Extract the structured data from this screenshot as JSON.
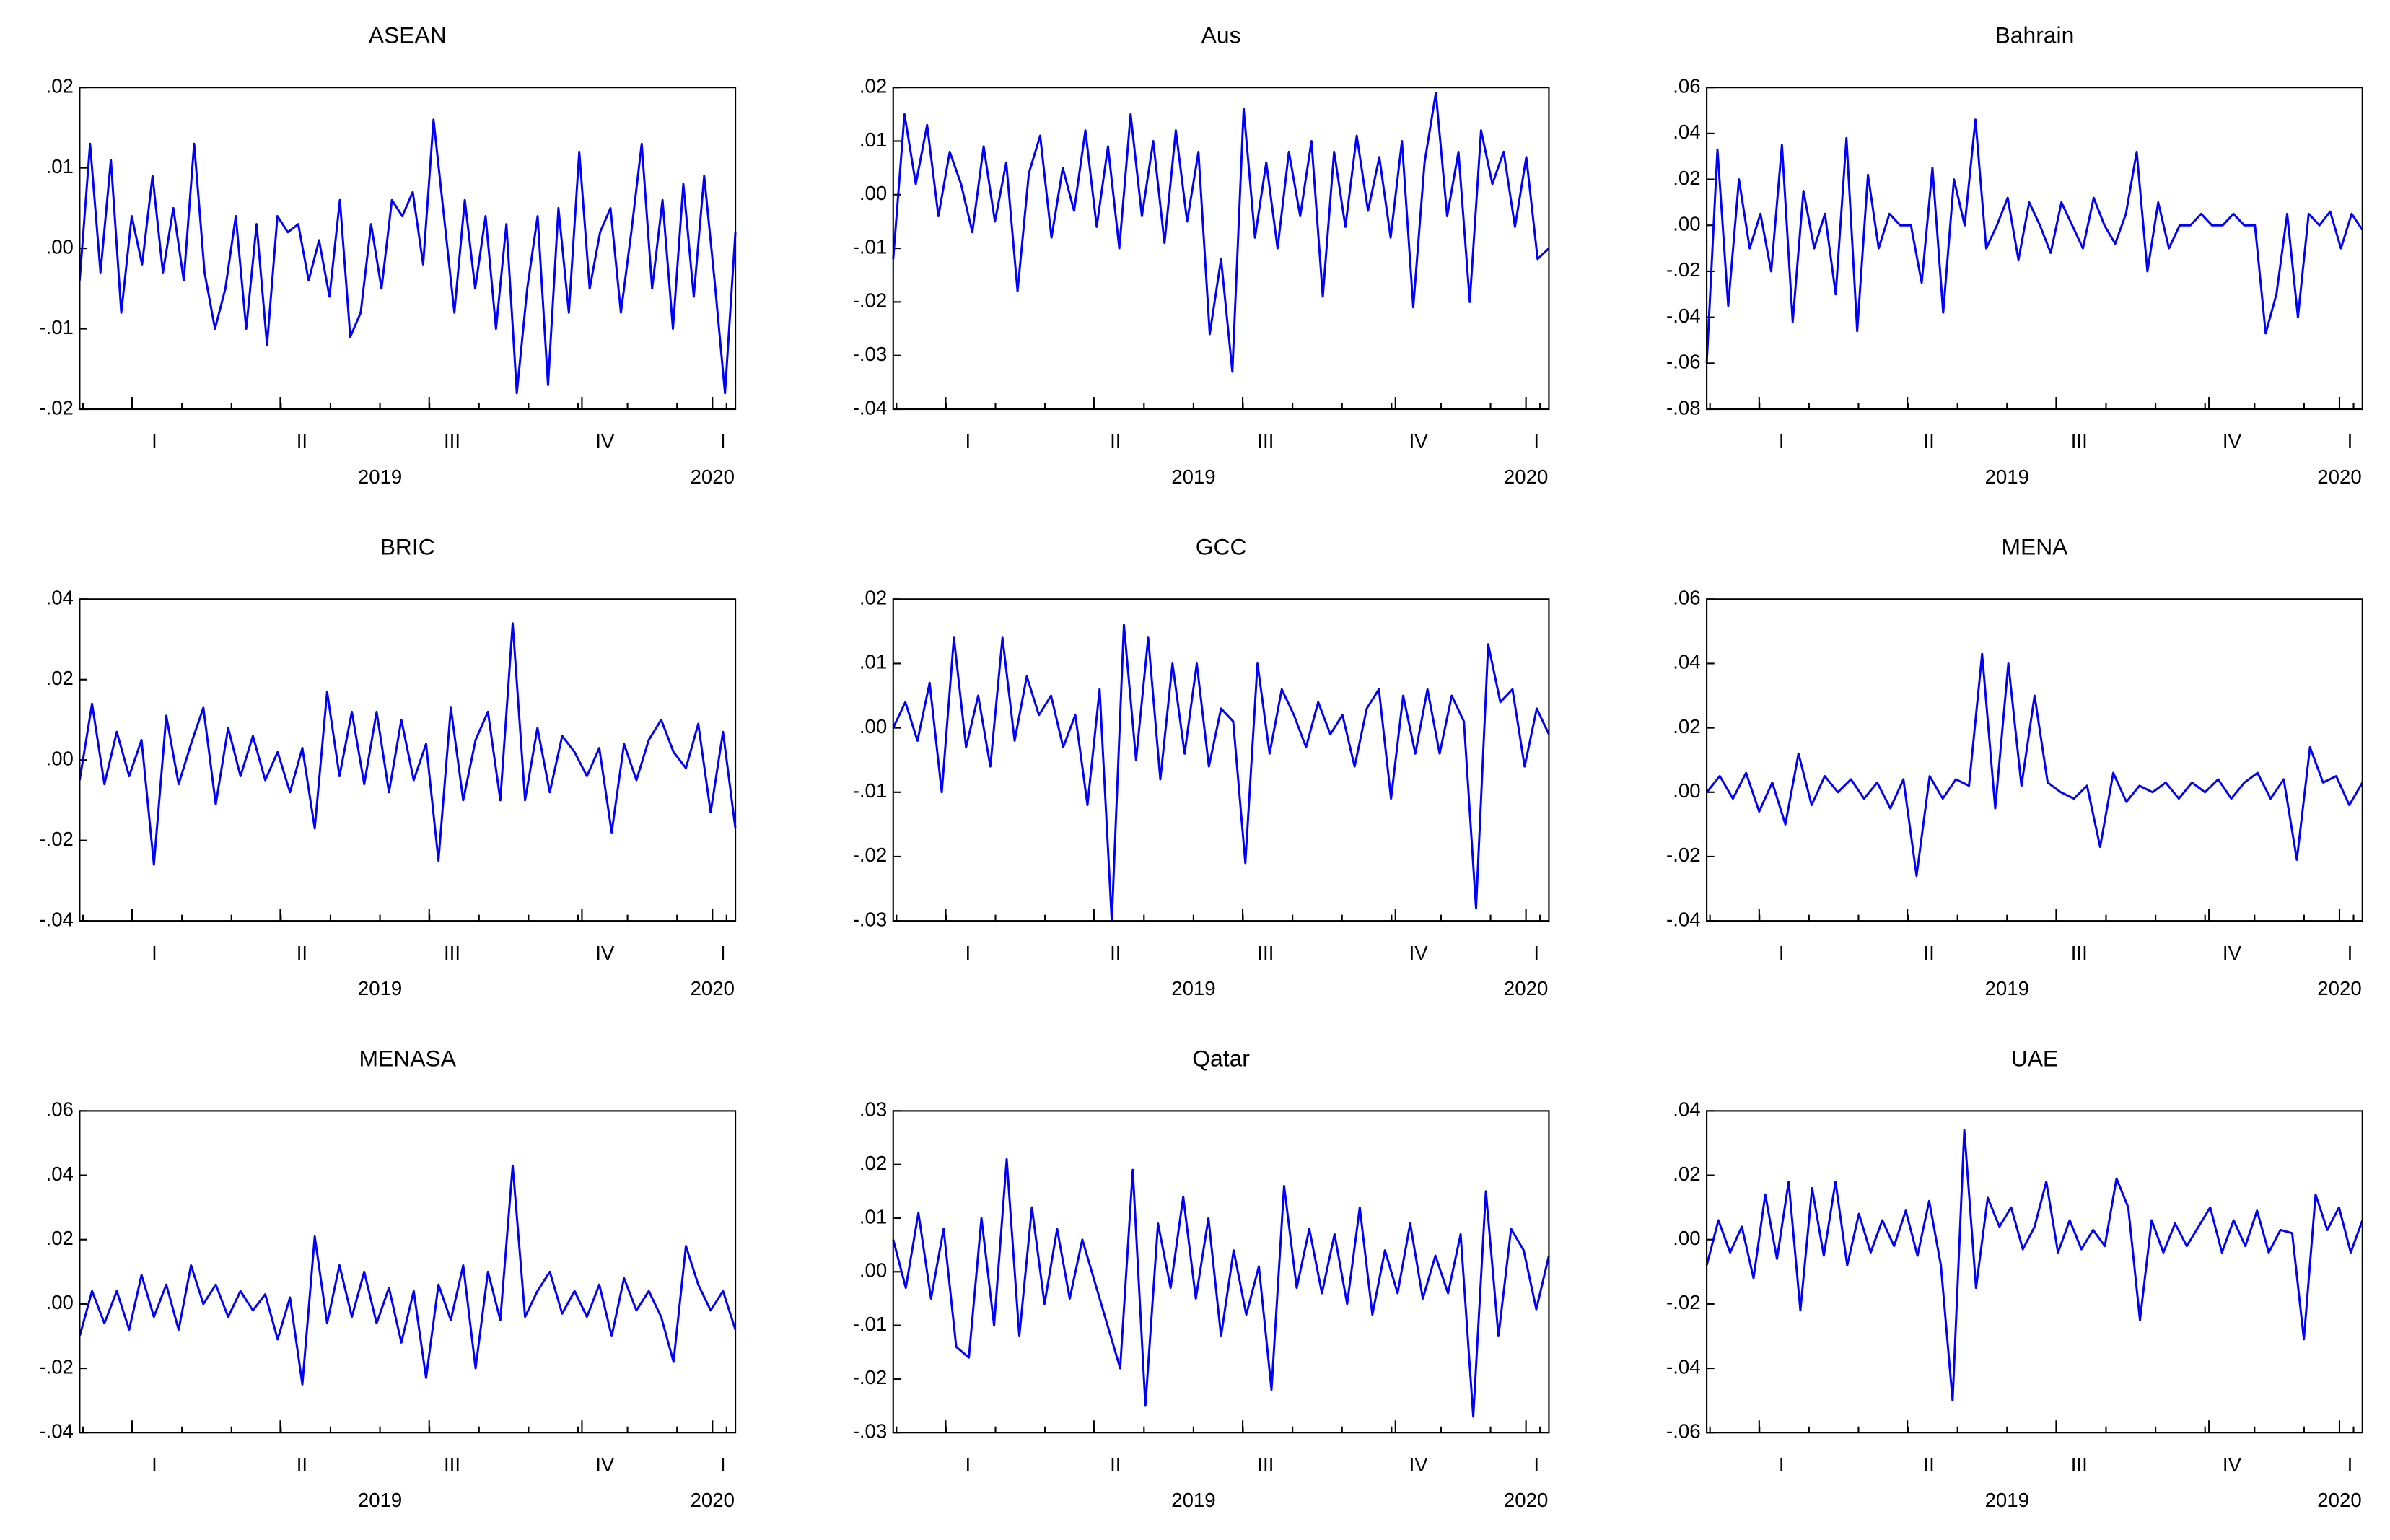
{
  "chart_data": [
    {
      "type": "line",
      "title": "ASEAN",
      "color": "#0000ff",
      "ylim": [
        -0.02,
        0.02
      ],
      "yticks": [
        {
          "value": -0.02,
          "label": "-.02"
        },
        {
          "value": -0.01,
          "label": "-.01"
        },
        {
          "value": 0,
          "label": ".00"
        },
        {
          "value": 0.01,
          "label": ".01"
        },
        {
          "value": 0.02,
          "label": ".02"
        }
      ],
      "x_labels": [
        "I",
        "II",
        "III",
        "IV",
        "I"
      ],
      "years": [
        "2019",
        "2020"
      ],
      "values": [
        -0.004,
        0.013,
        -0.003,
        0.011,
        -0.008,
        0.004,
        -0.002,
        0.009,
        -0.003,
        0.005,
        -0.004,
        0.013,
        -0.003,
        -0.01,
        -0.005,
        0.004,
        -0.01,
        0.003,
        -0.012,
        0.004,
        0.002,
        0.003,
        -0.004,
        0.001,
        -0.006,
        0.006,
        -0.011,
        -0.008,
        0.003,
        -0.005,
        0.006,
        0.004,
        0.007,
        -0.002,
        0.016,
        0.004,
        -0.008,
        0.006,
        -0.005,
        0.004,
        -0.01,
        0.003,
        -0.018,
        -0.005,
        0.004,
        -0.017,
        0.005,
        -0.008,
        0.012,
        -0.005,
        0.002,
        0.005,
        -0.008,
        0.002,
        0.013,
        -0.005,
        0.006,
        -0.01,
        0.008,
        -0.006,
        0.009,
        -0.004,
        -0.018,
        0.002
      ]
    },
    {
      "type": "line",
      "title": "Aus",
      "color": "#0000ff",
      "ylim": [
        -0.04,
        0.02
      ],
      "yticks": [
        {
          "value": -0.04,
          "label": "-.04"
        },
        {
          "value": -0.03,
          "label": "-.03"
        },
        {
          "value": -0.02,
          "label": "-.02"
        },
        {
          "value": -0.01,
          "label": "-.01"
        },
        {
          "value": 0,
          "label": ".00"
        },
        {
          "value": 0.01,
          "label": ".01"
        },
        {
          "value": 0.02,
          "label": ".02"
        }
      ],
      "x_labels": [
        "I",
        "II",
        "III",
        "IV",
        "I"
      ],
      "years": [
        "2019",
        "2020"
      ],
      "values": [
        -0.012,
        0.015,
        0.002,
        0.013,
        -0.004,
        0.008,
        0.002,
        -0.007,
        0.009,
        -0.005,
        0.006,
        -0.018,
        0.004,
        0.011,
        -0.008,
        0.005,
        -0.003,
        0.012,
        -0.006,
        0.009,
        -0.01,
        0.015,
        -0.004,
        0.01,
        -0.009,
        0.012,
        -0.005,
        0.008,
        -0.026,
        -0.012,
        -0.033,
        0.016,
        -0.008,
        0.006,
        -0.01,
        0.008,
        -0.004,
        0.01,
        -0.019,
        0.008,
        -0.006,
        0.011,
        -0.003,
        0.007,
        -0.008,
        0.01,
        -0.021,
        0.006,
        0.019,
        -0.004,
        0.008,
        -0.02,
        0.012,
        0.002,
        0.008,
        -0.006,
        0.007,
        -0.012,
        -0.01
      ]
    },
    {
      "type": "line",
      "title": "Bahrain",
      "color": "#0000ff",
      "ylim": [
        -0.08,
        0.06
      ],
      "yticks": [
        {
          "value": -0.08,
          "label": "-.08"
        },
        {
          "value": -0.06,
          "label": "-.06"
        },
        {
          "value": -0.04,
          "label": "-.04"
        },
        {
          "value": -0.02,
          "label": "-.02"
        },
        {
          "value": 0,
          "label": ".00"
        },
        {
          "value": 0.02,
          "label": ".02"
        },
        {
          "value": 0.04,
          "label": ".04"
        },
        {
          "value": 0.06,
          "label": ".06"
        }
      ],
      "x_labels": [
        "I",
        "II",
        "III",
        "IV",
        "I"
      ],
      "years": [
        "2019",
        "2020"
      ],
      "values": [
        -0.06,
        0.033,
        -0.035,
        0.02,
        -0.01,
        0.005,
        -0.02,
        0.035,
        -0.042,
        0.015,
        -0.01,
        0.005,
        -0.03,
        0.038,
        -0.046,
        0.022,
        -0.01,
        0.005,
        0,
        0,
        -0.025,
        0.025,
        -0.038,
        0.02,
        0,
        0.046,
        -0.01,
        0,
        0.012,
        -0.015,
        0.01,
        0,
        -0.012,
        0.01,
        0,
        -0.01,
        0.012,
        0,
        -0.008,
        0.005,
        0.032,
        -0.02,
        0.01,
        -0.01,
        0,
        0,
        0.005,
        0,
        0,
        0.005,
        0,
        0,
        -0.047,
        -0.03,
        0.005,
        -0.04,
        0.005,
        0,
        0.006,
        -0.01,
        0.005,
        -0.002
      ]
    },
    {
      "type": "line",
      "title": "BRIC",
      "color": "#0000ff",
      "ylim": [
        -0.04,
        0.04
      ],
      "yticks": [
        {
          "value": -0.04,
          "label": "-.04"
        },
        {
          "value": -0.02,
          "label": "-.02"
        },
        {
          "value": 0,
          "label": ".00"
        },
        {
          "value": 0.02,
          "label": ".02"
        },
        {
          "value": 0.04,
          "label": ".04"
        }
      ],
      "x_labels": [
        "I",
        "II",
        "III",
        "IV",
        "I"
      ],
      "years": [
        "2019",
        "2020"
      ],
      "values": [
        -0.005,
        0.014,
        -0.006,
        0.007,
        -0.004,
        0.005,
        -0.026,
        0.011,
        -0.006,
        0.004,
        0.013,
        -0.011,
        0.008,
        -0.004,
        0.006,
        -0.005,
        0.002,
        -0.008,
        0.003,
        -0.017,
        0.017,
        -0.004,
        0.012,
        -0.006,
        0.012,
        -0.008,
        0.01,
        -0.005,
        0.004,
        -0.025,
        0.013,
        -0.01,
        0.005,
        0.012,
        -0.01,
        0.034,
        -0.01,
        0.008,
        -0.008,
        0.006,
        0.002,
        -0.004,
        0.003,
        -0.018,
        0.004,
        -0.005,
        0.005,
        0.01,
        0.002,
        -0.002,
        0.009,
        -0.013,
        0.007,
        -0.017
      ]
    },
    {
      "type": "line",
      "title": "GCC",
      "color": "#0000ff",
      "ylim": [
        -0.03,
        0.02
      ],
      "yticks": [
        {
          "value": -0.03,
          "label": "-.03"
        },
        {
          "value": -0.02,
          "label": "-.02"
        },
        {
          "value": -0.01,
          "label": "-.01"
        },
        {
          "value": 0,
          "label": ".00"
        },
        {
          "value": 0.01,
          "label": ".01"
        },
        {
          "value": 0.02,
          "label": ".02"
        }
      ],
      "x_labels": [
        "I",
        "II",
        "III",
        "IV",
        "I"
      ],
      "years": [
        "2019",
        "2020"
      ],
      "values": [
        0,
        0.004,
        -0.002,
        0.007,
        -0.01,
        0.014,
        -0.003,
        0.005,
        -0.006,
        0.014,
        -0.002,
        0.008,
        0.002,
        0.005,
        -0.003,
        0.002,
        -0.012,
        0.006,
        -0.03,
        0.016,
        -0.005,
        0.014,
        -0.008,
        0.01,
        -0.004,
        0.01,
        -0.006,
        0.003,
        0.001,
        -0.021,
        0.01,
        -0.004,
        0.006,
        0.002,
        -0.003,
        0.004,
        -0.001,
        0.002,
        -0.006,
        0.003,
        0.006,
        -0.011,
        0.005,
        -0.004,
        0.006,
        -0.004,
        0.005,
        0.001,
        -0.028,
        0.013,
        0.004,
        0.006,
        -0.006,
        0.003,
        -0.001
      ]
    },
    {
      "type": "line",
      "title": "MENA",
      "color": "#0000ff",
      "ylim": [
        -0.04,
        0.06
      ],
      "yticks": [
        {
          "value": -0.04,
          "label": "-.04"
        },
        {
          "value": -0.02,
          "label": "-.02"
        },
        {
          "value": 0,
          "label": ".00"
        },
        {
          "value": 0.02,
          "label": ".02"
        },
        {
          "value": 0.04,
          "label": ".04"
        },
        {
          "value": 0.06,
          "label": ".06"
        }
      ],
      "x_labels": [
        "I",
        "II",
        "III",
        "IV",
        "I"
      ],
      "years": [
        "2019",
        "2020"
      ],
      "values": [
        0,
        0.005,
        -0.002,
        0.006,
        -0.006,
        0.003,
        -0.01,
        0.012,
        -0.004,
        0.005,
        0,
        0.004,
        -0.002,
        0.003,
        -0.005,
        0.004,
        -0.026,
        0.005,
        -0.002,
        0.004,
        0.002,
        0.043,
        -0.005,
        0.04,
        0.002,
        0.03,
        0.003,
        0,
        -0.002,
        0.002,
        -0.017,
        0.006,
        -0.003,
        0.002,
        0,
        0.003,
        -0.002,
        0.003,
        0,
        0.004,
        -0.002,
        0.003,
        0.006,
        -0.002,
        0.004,
        -0.021,
        0.014,
        0.003,
        0.005,
        -0.004,
        0.003
      ]
    },
    {
      "type": "line",
      "title": "MENASA",
      "color": "#0000ff",
      "ylim": [
        -0.04,
        0.06
      ],
      "yticks": [
        {
          "value": -0.04,
          "label": "-.04"
        },
        {
          "value": -0.02,
          "label": "-.02"
        },
        {
          "value": 0,
          "label": ".00"
        },
        {
          "value": 0.02,
          "label": ".02"
        },
        {
          "value": 0.04,
          "label": ".04"
        },
        {
          "value": 0.06,
          "label": ".06"
        }
      ],
      "x_labels": [
        "I",
        "II",
        "III",
        "IV",
        "I"
      ],
      "years": [
        "2019",
        "2020"
      ],
      "values": [
        -0.01,
        0.004,
        -0.006,
        0.004,
        -0.008,
        0.009,
        -0.004,
        0.006,
        -0.008,
        0.012,
        0,
        0.006,
        -0.004,
        0.004,
        -0.002,
        0.003,
        -0.011,
        0.002,
        -0.025,
        0.021,
        -0.006,
        0.012,
        -0.004,
        0.01,
        -0.006,
        0.005,
        -0.012,
        0.004,
        -0.023,
        0.006,
        -0.005,
        0.012,
        -0.02,
        0.01,
        -0.005,
        0.043,
        -0.004,
        0.004,
        0.01,
        -0.003,
        0.004,
        -0.004,
        0.006,
        -0.01,
        0.008,
        -0.002,
        0.004,
        -0.004,
        -0.018,
        0.018,
        0.006,
        -0.002,
        0.004,
        -0.008
      ]
    },
    {
      "type": "line",
      "title": "Qatar",
      "color": "#0000ff",
      "ylim": [
        -0.03,
        0.03
      ],
      "yticks": [
        {
          "value": -0.03,
          "label": "-.03"
        },
        {
          "value": -0.02,
          "label": "-.02"
        },
        {
          "value": -0.01,
          "label": "-.01"
        },
        {
          "value": 0,
          "label": ".00"
        },
        {
          "value": 0.01,
          "label": ".01"
        },
        {
          "value": 0.02,
          "label": ".02"
        },
        {
          "value": 0.03,
          "label": ".03"
        }
      ],
      "x_labels": [
        "I",
        "II",
        "III",
        "IV",
        "I"
      ],
      "years": [
        "2019",
        "2020"
      ],
      "values": [
        0.006,
        -0.003,
        0.011,
        -0.005,
        0.008,
        -0.014,
        -0.016,
        0.01,
        -0.01,
        0.021,
        -0.012,
        0.012,
        -0.006,
        0.008,
        -0.005,
        0.006,
        -0.002,
        -0.01,
        -0.018,
        0.019,
        -0.025,
        0.009,
        -0.003,
        0.014,
        -0.005,
        0.01,
        -0.012,
        0.004,
        -0.008,
        0.001,
        -0.022,
        0.016,
        -0.003,
        0.008,
        -0.004,
        0.007,
        -0.006,
        0.012,
        -0.008,
        0.004,
        -0.004,
        0.009,
        -0.005,
        0.003,
        -0.004,
        0.007,
        -0.027,
        0.015,
        -0.012,
        0.008,
        0.004,
        -0.007,
        0.003
      ]
    },
    {
      "type": "line",
      "title": "UAE",
      "color": "#0000ff",
      "ylim": [
        -0.06,
        0.04
      ],
      "yticks": [
        {
          "value": -0.06,
          "label": "-.06"
        },
        {
          "value": -0.04,
          "label": "-.04"
        },
        {
          "value": -0.02,
          "label": "-.02"
        },
        {
          "value": 0,
          "label": ".00"
        },
        {
          "value": 0.02,
          "label": ".02"
        },
        {
          "value": 0.04,
          "label": ".04"
        }
      ],
      "x_labels": [
        "I",
        "II",
        "III",
        "IV",
        "I"
      ],
      "years": [
        "2019",
        "2020"
      ],
      "values": [
        -0.008,
        0.006,
        -0.004,
        0.004,
        -0.012,
        0.014,
        -0.006,
        0.018,
        -0.022,
        0.016,
        -0.005,
        0.018,
        -0.008,
        0.008,
        -0.004,
        0.006,
        -0.002,
        0.009,
        -0.005,
        0.012,
        -0.008,
        -0.05,
        0.034,
        -0.015,
        0.013,
        0.004,
        0.01,
        -0.003,
        0.004,
        0.018,
        -0.004,
        0.006,
        -0.003,
        0.003,
        -0.002,
        0.019,
        0.01,
        -0.025,
        0.006,
        -0.004,
        0.005,
        -0.002,
        0.004,
        0.01,
        -0.004,
        0.006,
        -0.002,
        0.009,
        -0.004,
        0.003,
        0.002,
        -0.031,
        0.014,
        0.003,
        0.01,
        -0.004,
        0.006
      ]
    }
  ]
}
